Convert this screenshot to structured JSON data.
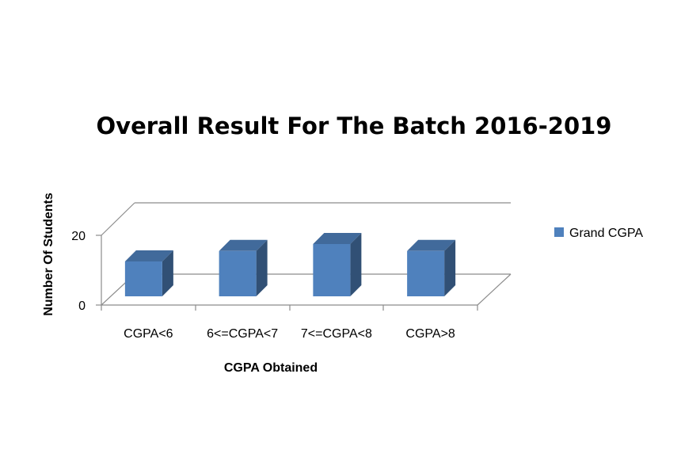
{
  "chart_data": {
    "type": "bar",
    "title": "Overall Result For The Batch 2016-2019",
    "xlabel": "CGPA Obtained",
    "ylabel": "Number Of Students",
    "categories": [
      "CGPA<6",
      "6<=CGPA<7",
      "7<=CGPA<8",
      "CGPA>8"
    ],
    "series": [
      {
        "name": "Grand CGPA",
        "values": [
          10,
          13,
          15,
          13
        ],
        "color": "#4f81bd"
      }
    ],
    "ylim": [
      0,
      20
    ],
    "yticks": [
      "0",
      "20"
    ],
    "legend": "right",
    "grid": false,
    "style": "3d-column"
  }
}
